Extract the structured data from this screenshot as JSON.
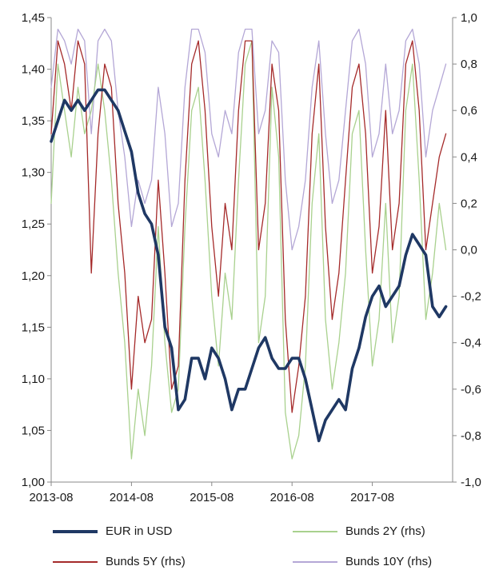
{
  "chart_data": {
    "type": "line",
    "title": "",
    "xlabel": "",
    "ylabel": "",
    "x_ticks": [
      "2013-08",
      "2014-08",
      "2015-08",
      "2016-08",
      "2017-08"
    ],
    "x_range": [
      "2013-08",
      "2018-08"
    ],
    "y_left": {
      "ylim": [
        1.0,
        1.45
      ],
      "ticks": [
        "1,00",
        "1,05",
        "1,10",
        "1,15",
        "1,20",
        "1,25",
        "1,30",
        "1,35",
        "1,40",
        "1,45"
      ]
    },
    "y_right": {
      "ylim": [
        -1.0,
        1.0
      ],
      "ticks": [
        "-1,0",
        "-0,8",
        "-0,6",
        "-0,4",
        "-0,2",
        "0,0",
        "0,2",
        "0,4",
        "0,6",
        "0,8",
        "1,0"
      ]
    },
    "grid": false,
    "legend_position": "bottom",
    "series": [
      {
        "name": "EUR in USD",
        "axis": "left",
        "color": "#1f3864",
        "width": 3.6,
        "x": [
          "2013-08",
          "2013-09",
          "2013-10",
          "2013-11",
          "2013-12",
          "2014-01",
          "2014-02",
          "2014-03",
          "2014-04",
          "2014-05",
          "2014-06",
          "2014-07",
          "2014-08",
          "2014-09",
          "2014-10",
          "2014-11",
          "2014-12",
          "2015-01",
          "2015-02",
          "2015-03",
          "2015-04",
          "2015-05",
          "2015-06",
          "2015-07",
          "2015-08",
          "2015-09",
          "2015-10",
          "2015-11",
          "2015-12",
          "2016-01",
          "2016-02",
          "2016-03",
          "2016-04",
          "2016-05",
          "2016-06",
          "2016-07",
          "2016-08",
          "2016-09",
          "2016-10",
          "2016-11",
          "2016-12",
          "2017-01",
          "2017-02",
          "2017-03",
          "2017-04",
          "2017-05",
          "2017-06",
          "2017-07",
          "2017-08",
          "2017-09",
          "2017-10",
          "2017-11",
          "2017-12",
          "2018-01",
          "2018-02",
          "2018-03",
          "2018-04",
          "2018-05",
          "2018-06",
          "2018-07"
        ],
        "values": [
          1.33,
          1.35,
          1.37,
          1.36,
          1.37,
          1.36,
          1.37,
          1.38,
          1.38,
          1.37,
          1.36,
          1.34,
          1.32,
          1.28,
          1.26,
          1.25,
          1.22,
          1.15,
          1.13,
          1.07,
          1.08,
          1.12,
          1.12,
          1.1,
          1.13,
          1.12,
          1.1,
          1.07,
          1.09,
          1.09,
          1.11,
          1.13,
          1.14,
          1.12,
          1.11,
          1.11,
          1.12,
          1.12,
          1.1,
          1.07,
          1.04,
          1.06,
          1.07,
          1.08,
          1.07,
          1.11,
          1.13,
          1.16,
          1.18,
          1.19,
          1.17,
          1.18,
          1.19,
          1.22,
          1.24,
          1.23,
          1.22,
          1.17,
          1.16,
          1.17
        ]
      },
      {
        "name": "Bunds 2Y (rhs)",
        "axis": "right",
        "color": "#a9d18e",
        "width": 1.3,
        "x": [
          "2013-08",
          "2013-09",
          "2013-10",
          "2013-11",
          "2013-12",
          "2014-01",
          "2014-02",
          "2014-03",
          "2014-04",
          "2014-05",
          "2014-06",
          "2014-07",
          "2014-08",
          "2014-09",
          "2014-10",
          "2014-11",
          "2014-12",
          "2015-01",
          "2015-02",
          "2015-03",
          "2015-04",
          "2015-05",
          "2015-06",
          "2015-07",
          "2015-08",
          "2015-09",
          "2015-10",
          "2015-11",
          "2015-12",
          "2016-01",
          "2016-02",
          "2016-03",
          "2016-04",
          "2016-05",
          "2016-06",
          "2016-07",
          "2016-08",
          "2016-09",
          "2016-10",
          "2016-11",
          "2016-12",
          "2017-01",
          "2017-02",
          "2017-03",
          "2017-04",
          "2017-05",
          "2017-06",
          "2017-07",
          "2017-08",
          "2017-09",
          "2017-10",
          "2017-11",
          "2017-12",
          "2018-01",
          "2018-02",
          "2018-03",
          "2018-04",
          "2018-05",
          "2018-06",
          "2018-07"
        ],
        "values": [
          0.2,
          0.8,
          0.6,
          0.4,
          0.7,
          0.5,
          0.6,
          0.8,
          0.6,
          0.3,
          -0.1,
          -0.4,
          -0.9,
          -0.6,
          -0.8,
          -0.5,
          0.1,
          -0.4,
          -0.7,
          -0.6,
          0.1,
          0.6,
          0.7,
          0.3,
          -0.2,
          -0.5,
          -0.1,
          -0.3,
          0.3,
          0.8,
          0.9,
          -0.4,
          -0.2,
          0.7,
          0.4,
          -0.7,
          -0.9,
          -0.8,
          -0.5,
          0.2,
          0.5,
          -0.3,
          -0.6,
          -0.4,
          -0.1,
          0.5,
          0.6,
          0.0,
          -0.5,
          -0.3,
          0.2,
          -0.4,
          -0.2,
          0.6,
          0.8,
          0.3,
          -0.3,
          -0.1,
          0.2,
          0.0
        ]
      },
      {
        "name": "Bunds 5Y (rhs)",
        "axis": "right",
        "color": "#a52a2a",
        "width": 1.3,
        "x": [
          "2013-08",
          "2013-09",
          "2013-10",
          "2013-11",
          "2013-12",
          "2014-01",
          "2014-02",
          "2014-03",
          "2014-04",
          "2014-05",
          "2014-06",
          "2014-07",
          "2014-08",
          "2014-09",
          "2014-10",
          "2014-11",
          "2014-12",
          "2015-01",
          "2015-02",
          "2015-03",
          "2015-04",
          "2015-05",
          "2015-06",
          "2015-07",
          "2015-08",
          "2015-09",
          "2015-10",
          "2015-11",
          "2015-12",
          "2016-01",
          "2016-02",
          "2016-03",
          "2016-04",
          "2016-05",
          "2016-06",
          "2016-07",
          "2016-08",
          "2016-09",
          "2016-10",
          "2016-11",
          "2016-12",
          "2017-01",
          "2017-02",
          "2017-03",
          "2017-04",
          "2017-05",
          "2017-06",
          "2017-07",
          "2017-08",
          "2017-09",
          "2017-10",
          "2017-11",
          "2017-12",
          "2018-01",
          "2018-02",
          "2018-03",
          "2018-04",
          "2018-05",
          "2018-06",
          "2018-07"
        ],
        "values": [
          0.5,
          0.9,
          0.8,
          0.6,
          0.9,
          0.8,
          -0.1,
          0.5,
          0.8,
          0.7,
          0.2,
          -0.1,
          -0.6,
          -0.2,
          -0.4,
          -0.3,
          0.3,
          -0.1,
          -0.6,
          -0.5,
          0.3,
          0.8,
          0.9,
          0.6,
          0.1,
          -0.2,
          0.2,
          0.0,
          0.6,
          0.9,
          0.9,
          0.0,
          0.2,
          0.8,
          0.6,
          -0.3,
          -0.7,
          -0.5,
          -0.2,
          0.5,
          0.8,
          0.1,
          -0.3,
          -0.1,
          0.3,
          0.7,
          0.8,
          0.5,
          -0.1,
          0.1,
          0.6,
          0.0,
          0.2,
          0.8,
          0.9,
          0.6,
          0.0,
          0.2,
          0.4,
          0.5
        ]
      },
      {
        "name": "Bunds 10Y (rhs)",
        "axis": "right",
        "color": "#b4a7d6",
        "width": 1.3,
        "x": [
          "2013-08",
          "2013-09",
          "2013-10",
          "2013-11",
          "2013-12",
          "2014-01",
          "2014-02",
          "2014-03",
          "2014-04",
          "2014-05",
          "2014-06",
          "2014-07",
          "2014-08",
          "2014-09",
          "2014-10",
          "2014-11",
          "2014-12",
          "2015-01",
          "2015-02",
          "2015-03",
          "2015-04",
          "2015-05",
          "2015-06",
          "2015-07",
          "2015-08",
          "2015-09",
          "2015-10",
          "2015-11",
          "2015-12",
          "2016-01",
          "2016-02",
          "2016-03",
          "2016-04",
          "2016-05",
          "2016-06",
          "2016-07",
          "2016-08",
          "2016-09",
          "2016-10",
          "2016-11",
          "2016-12",
          "2017-01",
          "2017-02",
          "2017-03",
          "2017-04",
          "2017-05",
          "2017-06",
          "2017-07",
          "2017-08",
          "2017-09",
          "2017-10",
          "2017-11",
          "2017-12",
          "2018-01",
          "2018-02",
          "2018-03",
          "2018-04",
          "2018-05",
          "2018-06",
          "2018-07"
        ],
        "values": [
          0.7,
          0.95,
          0.9,
          0.8,
          0.95,
          0.9,
          0.5,
          0.9,
          0.95,
          0.9,
          0.6,
          0.4,
          0.1,
          0.3,
          0.2,
          0.3,
          0.7,
          0.5,
          0.1,
          0.2,
          0.7,
          0.95,
          0.95,
          0.85,
          0.5,
          0.4,
          0.6,
          0.5,
          0.85,
          0.95,
          0.95,
          0.5,
          0.6,
          0.9,
          0.85,
          0.3,
          0.0,
          0.1,
          0.3,
          0.7,
          0.9,
          0.5,
          0.2,
          0.3,
          0.6,
          0.9,
          0.95,
          0.8,
          0.4,
          0.5,
          0.8,
          0.5,
          0.6,
          0.9,
          0.95,
          0.8,
          0.4,
          0.6,
          0.7,
          0.8
        ]
      }
    ]
  }
}
